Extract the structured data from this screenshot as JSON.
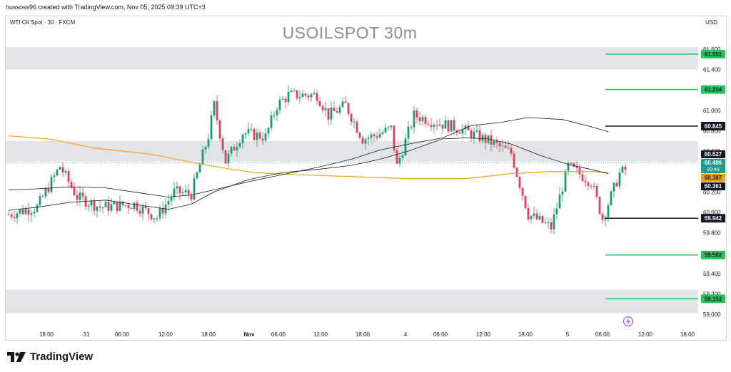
{
  "header": {
    "caption": "hussoss96 created with TradingView.com, Nov 05, 2025 09:39 UTC+3"
  },
  "symbol": {
    "description": "WTI Oil Spot · 30 · FXCM",
    "title": "USOILSPOT 30m",
    "currency": "USD"
  },
  "brand": {
    "name": "TradingView"
  },
  "chart_data": {
    "type": "candlestick",
    "title": "USOILSPOT 30m",
    "y_range": [
      58.95,
      61.68
    ],
    "y_ticks": [
      "61.600",
      "61.400",
      "61.200",
      "61.000",
      "60.800",
      "60.600",
      "60.400",
      "60.200",
      "60.000",
      "59.800",
      "59.600",
      "59.400",
      "59.200",
      "59.000"
    ],
    "x_ticks": [
      "18:00",
      "31",
      "06:00",
      "12:00",
      "18:00",
      "Nov",
      "06:00",
      "12:00",
      "18:00",
      "4",
      "06:00",
      "12:00",
      "18:00",
      "5",
      "06:00",
      "12:00",
      "18:00"
    ],
    "zones": [
      {
        "low": 61.4,
        "high": 61.62
      },
      {
        "low": 60.5,
        "high": 60.7
      },
      {
        "low": 59.01,
        "high": 59.24
      }
    ],
    "levels": [
      {
        "value": 61.552,
        "label": "61.552",
        "color": "#22c55e"
      },
      {
        "value": 61.204,
        "label": "61.204",
        "color": "#22c55e"
      },
      {
        "value": 60.845,
        "label": "60.845",
        "color": "#131722"
      },
      {
        "value": 59.942,
        "label": "59.942",
        "color": "#131722"
      },
      {
        "value": 59.582,
        "label": "59.582",
        "color": "#22c55e"
      },
      {
        "value": 59.152,
        "label": "59.152",
        "color": "#22c55e"
      }
    ],
    "price_tags": [
      {
        "value": 60.527,
        "label": "60.527",
        "bg": "#131722",
        "fg": "#ffffff"
      },
      {
        "value": 60.486,
        "label": "60.486",
        "sub": "20:49",
        "bg": "#1e9b8a",
        "fg": "#ffffff"
      },
      {
        "value": 60.387,
        "label": "60.387",
        "bg": "#f59e0b",
        "fg": "#131722"
      },
      {
        "value": 60.361,
        "label": "60.361",
        "bg": "#131722",
        "fg": "#ffffff"
      }
    ],
    "last_price": 60.486,
    "moving_averages": [
      {
        "color": "#f5a623",
        "points": [
          [
            0,
            60.75
          ],
          [
            14,
            60.72
          ],
          [
            30,
            60.63
          ],
          [
            50,
            60.57
          ],
          [
            66,
            60.48
          ],
          [
            74,
            60.44
          ],
          [
            86,
            60.39
          ],
          [
            100,
            60.37
          ],
          [
            120,
            60.35
          ],
          [
            140,
            60.33
          ],
          [
            160,
            60.33
          ],
          [
            176,
            60.38
          ],
          [
            190,
            60.4
          ],
          [
            204,
            60.4
          ],
          [
            210,
            60.39
          ]
        ]
      },
      {
        "color": "#131722",
        "points": [
          [
            0,
            60.22
          ],
          [
            10,
            60.23
          ],
          [
            22,
            60.25
          ],
          [
            34,
            60.24
          ],
          [
            46,
            60.19
          ],
          [
            56,
            60.15
          ],
          [
            64,
            60.17
          ],
          [
            72,
            60.22
          ],
          [
            84,
            60.3
          ],
          [
            96,
            60.37
          ],
          [
            108,
            60.44
          ],
          [
            120,
            60.52
          ],
          [
            130,
            60.61
          ],
          [
            142,
            60.68
          ],
          [
            152,
            60.73
          ],
          [
            162,
            60.85
          ],
          [
            172,
            60.88
          ],
          [
            182,
            60.93
          ],
          [
            194,
            60.91
          ],
          [
            204,
            60.84
          ],
          [
            210,
            60.79
          ]
        ]
      },
      {
        "color": "#131722",
        "points": [
          [
            0,
            60.02
          ],
          [
            10,
            60.05
          ],
          [
            22,
            60.1
          ],
          [
            34,
            60.12
          ],
          [
            46,
            60.07
          ],
          [
            56,
            60.03
          ],
          [
            64,
            60.08
          ],
          [
            72,
            60.2
          ],
          [
            84,
            60.32
          ],
          [
            96,
            60.39
          ],
          [
            108,
            60.42
          ],
          [
            120,
            60.46
          ],
          [
            130,
            60.52
          ],
          [
            140,
            60.6
          ],
          [
            152,
            60.72
          ],
          [
            160,
            60.73
          ],
          [
            168,
            60.72
          ],
          [
            176,
            60.67
          ],
          [
            186,
            60.56
          ],
          [
            196,
            60.47
          ],
          [
            204,
            60.42
          ],
          [
            210,
            60.38
          ]
        ]
      }
    ],
    "close_path": [
      [
        0,
        59.98
      ],
      [
        10,
        60.05
      ],
      [
        18,
        60.45
      ],
      [
        24,
        60.15
      ],
      [
        32,
        60.05
      ],
      [
        44,
        60.08
      ],
      [
        52,
        59.95
      ],
      [
        58,
        60.2
      ],
      [
        64,
        60.18
      ],
      [
        70,
        60.75
      ],
      [
        72,
        61.05
      ],
      [
        76,
        60.5
      ],
      [
        82,
        60.78
      ],
      [
        90,
        60.74
      ],
      [
        94,
        61.05
      ],
      [
        98,
        61.15
      ],
      [
        108,
        61.15
      ],
      [
        112,
        60.95
      ],
      [
        118,
        61.05
      ],
      [
        124,
        60.72
      ],
      [
        128,
        60.75
      ],
      [
        134,
        60.82
      ],
      [
        136,
        60.45
      ],
      [
        142,
        60.95
      ],
      [
        150,
        60.88
      ],
      [
        158,
        60.82
      ],
      [
        168,
        60.7
      ],
      [
        176,
        60.58
      ],
      [
        182,
        59.98
      ],
      [
        190,
        59.85
      ],
      [
        196,
        60.45
      ],
      [
        204,
        60.3
      ],
      [
        208,
        59.94
      ],
      [
        214,
        60.38
      ],
      [
        220,
        60.49
      ]
    ],
    "event_icon": "lightning-bolt-icon"
  }
}
